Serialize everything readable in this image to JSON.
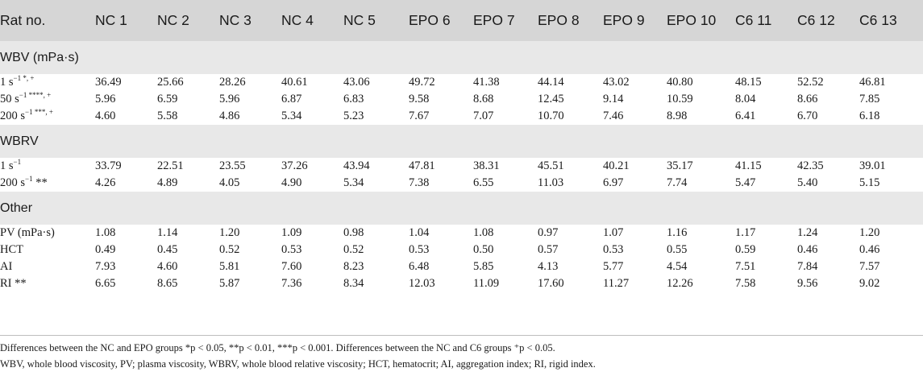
{
  "table": {
    "headers": [
      "Rat no.",
      "NC 1",
      "NC 2",
      "NC 3",
      "NC 4",
      "NC 5",
      "EPO 6",
      "EPO 7",
      "EPO 8",
      "EPO 9",
      "EPO 10",
      "C6 11",
      "C6 12",
      "C6 13"
    ],
    "sections": [
      {
        "title": "WBV (mPa·s)",
        "rows": [
          {
            "label": "1 s",
            "sup": "−1 *, +",
            "values": [
              "36.49",
              "25.66",
              "28.26",
              "40.61",
              "43.06",
              "49.72",
              "41.38",
              "44.14",
              "43.02",
              "40.80",
              "48.15",
              "52.52",
              "46.81"
            ]
          },
          {
            "label": "50 s",
            "sup": "−1 ****, +",
            "values": [
              "5.96",
              "6.59",
              "5.96",
              "6.87",
              "6.83",
              "9.58",
              "8.68",
              "12.45",
              "9.14",
              "10.59",
              "8.04",
              "8.66",
              "7.85"
            ]
          },
          {
            "label": "200 s",
            "sup": "−1 ***, +",
            "values": [
              "4.60",
              "5.58",
              "4.86",
              "5.34",
              "5.23",
              "7.67",
              "7.07",
              "10.70",
              "7.46",
              "8.98",
              "6.41",
              "6.70",
              "6.18"
            ]
          }
        ]
      },
      {
        "title": "WBRV",
        "rows": [
          {
            "label": "1 s",
            "sup": "−1",
            "values": [
              "33.79",
              "22.51",
              "23.55",
              "37.26",
              "43.94",
              "47.81",
              "38.31",
              "45.51",
              "40.21",
              "35.17",
              "41.15",
              "42.35",
              "39.01"
            ]
          },
          {
            "label": "200 s",
            "sup": "−1",
            "suffix": " **",
            "values": [
              "4.26",
              "4.89",
              "4.05",
              "4.90",
              "5.34",
              "7.38",
              "6.55",
              "11.03",
              "6.97",
              "7.74",
              "5.47",
              "5.40",
              "5.15"
            ]
          }
        ]
      },
      {
        "title": "Other",
        "rows": [
          {
            "label": "PV (mPa·s)",
            "values": [
              "1.08",
              "1.14",
              "1.20",
              "1.09",
              "0.98",
              "1.04",
              "1.08",
              "0.97",
              "1.07",
              "1.16",
              "1.17",
              "1.24",
              "1.20"
            ]
          },
          {
            "label": "HCT",
            "values": [
              "0.49",
              "0.45",
              "0.52",
              "0.53",
              "0.52",
              "0.53",
              "0.50",
              "0.57",
              "0.53",
              "0.55",
              "0.59",
              "0.46",
              "0.46"
            ]
          },
          {
            "label": "AI",
            "values": [
              "7.93",
              "4.60",
              "5.81",
              "7.60",
              "8.23",
              "6.48",
              "5.85",
              "4.13",
              "5.77",
              "4.54",
              "7.51",
              "7.84",
              "7.57"
            ]
          },
          {
            "label": "RI **",
            "values": [
              "6.65",
              "8.65",
              "5.87",
              "7.36",
              "8.34",
              "12.03",
              "11.09",
              "17.60",
              "11.27",
              "12.26",
              "7.58",
              "9.56",
              "9.02"
            ]
          }
        ]
      }
    ]
  },
  "footnotes": [
    "Differences between the NC and EPO groups *p < 0.05, **p < 0.01, ***p < 0.001. Differences between the NC and C6 groups ⁺p < 0.05.",
    "WBV, whole blood viscosity, PV; plasma viscosity, WBRV, whole blood relative viscosity; HCT, hematocrit; AI, aggregation index; RI, rigid index."
  ]
}
